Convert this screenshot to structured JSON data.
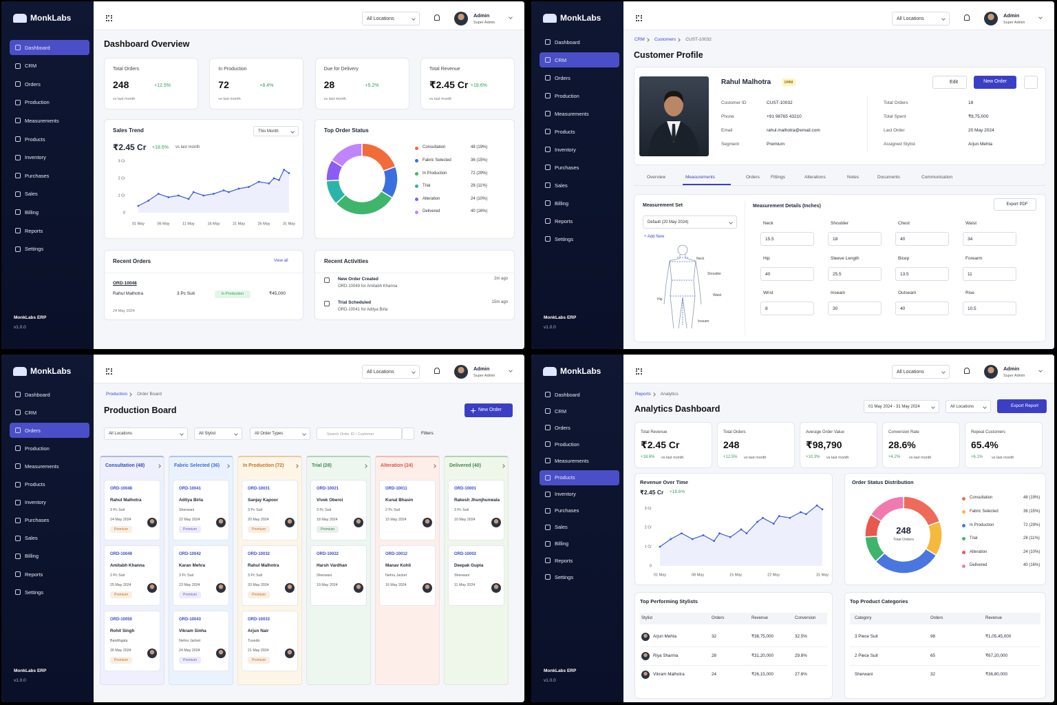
{
  "sidebar": {
    "brand": "MonkLabs",
    "nav": [
      "Dashboard",
      "CRM",
      "Orders",
      "Production",
      "Measurements",
      "Products",
      "Inventory",
      "Purchases",
      "Sales",
      "Billing",
      "Reports",
      "Settings"
    ],
    "footer": "MonkLabs ERP",
    "version": "v1.0.0"
  },
  "topbar": {
    "location": "All Locations",
    "user": "Admin",
    "role": "Super Admin"
  },
  "dashboard": {
    "active_nav": 0,
    "title": "Dashboard Overview",
    "stats": [
      {
        "label": "Total Orders",
        "value": "248",
        "change": "+12.5%",
        "note": "vs last month"
      },
      {
        "label": "In Production",
        "value": "72",
        "change": "+8.4%",
        "note": "vs last month"
      },
      {
        "label": "Due for Delivery",
        "value": "28",
        "change": "+5.2%",
        "note": "vs last month"
      },
      {
        "label": "Total Revenue",
        "value": "₹2.45 Cr",
        "change": "+18.6%",
        "note": "vs last month"
      }
    ],
    "sales_trend": {
      "title": "Sales Trend",
      "period": "This Month",
      "total": "₹2.45 Cr",
      "change": "+18.6%",
      "note": "vs last month",
      "chart": {
        "type": "line",
        "x": [
          1,
          3,
          5,
          7,
          9,
          11,
          12,
          14,
          16,
          18,
          19,
          21,
          23,
          25,
          27,
          28,
          29,
          30,
          31
        ],
        "values": [
          0.4,
          0.7,
          1.1,
          0.9,
          1.0,
          0.8,
          1.2,
          1.0,
          1.1,
          1.3,
          1.2,
          1.4,
          1.5,
          1.8,
          1.7,
          2.0,
          1.9,
          2.5,
          2.3
        ],
        "color": "#3b5bdb",
        "xlim": [
          1,
          31
        ],
        "xticks": [
          {
            "value": 1,
            "label": "01 May"
          },
          {
            "value": 6,
            "label": "06 May"
          },
          {
            "value": 11,
            "label": "11 May"
          },
          {
            "value": 16,
            "label": "16 May"
          },
          {
            "value": 21,
            "label": "21 May"
          },
          {
            "value": 26,
            "label": "26 May"
          },
          {
            "value": 31,
            "label": "31 May"
          }
        ],
        "ylim": [
          0,
          3
        ],
        "yticks": [
          0,
          {
            "value": 1,
            "label": "1 Cr"
          },
          {
            "value": 2,
            "label": "2 Cr"
          },
          {
            "value": 3,
            "label": "3 Cr"
          }
        ],
        "grid": false
      }
    },
    "order_status": {
      "title": "Top Order Status",
      "chart": {
        "type": "donut",
        "categories": [
          "Consultation",
          "Fabric Selected",
          "In Production",
          "Trial",
          "Alteration",
          "Delivered"
        ],
        "values": [
          48,
          36,
          72,
          28,
          24,
          40
        ],
        "value_labels": [
          "48 (19%)",
          "36 (15%)",
          "72 (29%)",
          "28 (11%)",
          "24 (10%)",
          "40 (16%)"
        ],
        "colors": [
          "#f26b3a",
          "#3b6fe0",
          "#3fb56b",
          "#2bb5a8",
          "#8b5cf6",
          "#c084fc"
        ]
      }
    },
    "recent_orders": {
      "title": "Recent Orders",
      "link": "View all",
      "rows": [
        {
          "id": "ORD-10048",
          "customer": "Rahul Malhotra",
          "product": "3 Pc Suit",
          "status": "In Production",
          "amount": "₹45,000",
          "date": "24 May 2024"
        }
      ]
    },
    "recent_activities": {
      "title": "Recent Activities",
      "items": [
        {
          "title": "New Order Created",
          "detail": "ORD-10049 for Amitabh Khanna",
          "time": "2m ago"
        },
        {
          "title": "Trial Scheduled",
          "detail": "ORD-10041 for Aditya Birla",
          "time": "15m ago"
        }
      ]
    }
  },
  "customer": {
    "active_nav": 1,
    "breadcrumb": [
      "CRM",
      "Customers",
      "CUST-10032"
    ],
    "title": "Customer Profile",
    "name": "Rahul Malhotra",
    "badge": "UHNI",
    "buttons": [
      "Edit",
      "New Order"
    ],
    "fields": [
      [
        "Customer ID",
        "CUST-10032"
      ],
      [
        "Phone",
        "+91 98765 43210"
      ],
      [
        "Email",
        "rahul.malhotra@email.com"
      ],
      [
        "Segment",
        "Premium"
      ]
    ],
    "summary": [
      [
        "Total Orders",
        "18"
      ],
      [
        "Total Spent",
        "₹8,75,000"
      ],
      [
        "Last Order",
        "20 May 2024"
      ],
      [
        "Assigned Stylist",
        "Arjun Mehta"
      ]
    ],
    "tabs": [
      "Overview",
      "Measurements",
      "Orders",
      "Fittings",
      "Alterations",
      "Notes",
      "Documents",
      "Communication"
    ],
    "active_tab": 1,
    "measurement_set": {
      "title": "Measurement Set",
      "selected": "Default (20 May 2024)",
      "add": "+ Add New",
      "figure_labels": [
        "Neck",
        "Shoulder",
        "Waist",
        "Hip",
        "Inseam"
      ]
    },
    "details": {
      "title": "Measurement Details (Inches)",
      "export": "Export PDF",
      "fields": [
        [
          "Neck",
          "15.5"
        ],
        [
          "Shoulder",
          "18"
        ],
        [
          "Chest",
          "40"
        ],
        [
          "Waist",
          "34"
        ],
        [
          "Hip",
          "40"
        ],
        [
          "Sleeve Length",
          "25.5"
        ],
        [
          "Bicep",
          "13.5"
        ],
        [
          "Forearm",
          "11"
        ],
        [
          "Wrist",
          "8"
        ],
        [
          "Inseam",
          "30"
        ],
        [
          "Outseam",
          "40"
        ],
        [
          "Rise",
          "10.5"
        ]
      ]
    }
  },
  "production": {
    "active_nav": 2,
    "breadcrumb": [
      "Production",
      "Order Board"
    ],
    "title": "Production Board",
    "button": "New Order",
    "filters": [
      "All Locations",
      "All Stylist",
      "All Order Types"
    ],
    "search": "Search Order ID / Customer",
    "filter_button": "Filters",
    "columns": [
      {
        "name": "Consultation (48)",
        "color": "#3646b8",
        "bg": "#eef1fd",
        "tag_color": "#c7711a",
        "cards": [
          {
            "id": "ORD-10048",
            "name": "Rahul Malhotra",
            "product": "3 Pc Suit",
            "date": "24 May 2024",
            "tag": "Premium"
          },
          {
            "id": "ORD-10049",
            "name": "Amitabh Khanna",
            "product": "2 Pc Suit",
            "date": "25 May 2024",
            "tag": "Premium"
          },
          {
            "id": "ORD-10050",
            "name": "Rohit Singh",
            "product": "Bandhgala",
            "date": "26 May 2024",
            "tag": "Premium"
          }
        ]
      },
      {
        "name": "Fabric Selected (36)",
        "color": "#3a6cd6",
        "bg": "#eaf2fd",
        "tag_color": "#6b5bd6",
        "cards": [
          {
            "id": "ORD-10041",
            "name": "Aditya Birla",
            "product": "Sherwani",
            "date": "22 May 2024",
            "tag": "Premium"
          },
          {
            "id": "ORD-10042",
            "name": "Karan Mehra",
            "product": "3 Pc Suit",
            "date": "23 May 2024",
            "tag": "Premium"
          },
          {
            "id": "ORD-10043",
            "name": "Vikram Sinha",
            "product": "Nehru Jacket",
            "date": "24 May 2024",
            "tag": "Premium"
          }
        ]
      },
      {
        "name": "In Production (72)",
        "color": "#c7711a",
        "bg": "#fdf5e6",
        "tag_color": "#c7711a",
        "cards": [
          {
            "id": "ORD-10031",
            "name": "Sanjay Kapoor",
            "product": "3 Pc Suit",
            "date": "20 May 2024",
            "tag": "Premium"
          },
          {
            "id": "ORD-10032",
            "name": "Rahul Malhotra",
            "product": "3 Pc Suit",
            "date": "20 May 2024",
            "tag": "Premium"
          },
          {
            "id": "ORD-10033",
            "name": "Arjun Nair",
            "product": "Tuxedo",
            "date": "21 May 2024",
            "tag": "Premium"
          }
        ]
      },
      {
        "name": "Trial (28)",
        "color": "#3b8a54",
        "bg": "#edf6ef",
        "tag_color": "#3b8a54",
        "cards": [
          {
            "id": "ORD-10021",
            "name": "Vivek Oberoi",
            "product": "3 Pc Suit",
            "date": "18 May 2024",
            "tag": "Premium"
          },
          {
            "id": "ORD-10022",
            "name": "Harsh Vardhan",
            "product": "Sherwani",
            "date": "19 May 2024"
          }
        ]
      },
      {
        "name": "Alteration (24)",
        "color": "#d8553f",
        "bg": "#fdeeea",
        "tag_color": "#d8553f",
        "cards": [
          {
            "id": "ORD-10011",
            "name": "Kunal Bhasin",
            "product": "2 Pc Suit",
            "date": "15 May 2024"
          },
          {
            "id": "ORD-10012",
            "name": "Manav Kohli",
            "product": "Nehru Jacket",
            "date": "16 May 2024"
          }
        ]
      },
      {
        "name": "Delivered (40)",
        "color": "#3c8a49",
        "bg": "#eef7ea",
        "tag_color": "#3c8a49",
        "cards": [
          {
            "id": "ORD-10001",
            "name": "Rakesh Jhunjhunwala",
            "product": "3 Pc Suit",
            "date": "10 May 2024"
          },
          {
            "id": "ORD-10002",
            "name": "Deepak Gupta",
            "product": "Sherwani",
            "date": "11 May 2024"
          }
        ]
      }
    ]
  },
  "analytics": {
    "active_nav": 5,
    "breadcrumb": [
      "Reports",
      "Analytics"
    ],
    "title": "Analytics Dashboard",
    "date_range": "01 May 2024 - 31 May 2024",
    "location": "All Locations",
    "export": "Export Report",
    "kpis": [
      {
        "label": "Total Revenue",
        "value": "₹2.45 Cr",
        "change": "+18.6%"
      },
      {
        "label": "Total Orders",
        "value": "248",
        "change": "+12.5%"
      },
      {
        "label": "Average Order Value",
        "value": "₹98,790",
        "change": "+10.3%"
      },
      {
        "label": "Conversion Rate",
        "value": "28.6%",
        "change": "+4.2%"
      },
      {
        "label": "Repeat Customers",
        "value": "65.4%",
        "change": "+6.1%"
      }
    ],
    "kpi_note": "vs last month",
    "revenue": {
      "title": "Revenue Over Time",
      "total": "₹2.45 Cr",
      "change": "+18.6%",
      "chart": {
        "type": "line",
        "x": [
          1,
          3,
          5,
          7,
          9,
          11,
          12,
          14,
          16,
          17,
          19,
          20,
          22,
          23,
          25,
          27,
          28,
          30,
          31
        ],
        "values": [
          1.0,
          1.4,
          1.7,
          1.4,
          1.6,
          1.3,
          1.7,
          1.5,
          1.9,
          1.7,
          2.3,
          2.5,
          2.2,
          2.6,
          2.5,
          2.8,
          2.7,
          3.15,
          2.95
        ],
        "color": "#3b5bdb",
        "xlim": [
          1,
          31
        ],
        "xticks": [
          {
            "value": 1,
            "label": "01 May"
          },
          {
            "value": 8,
            "label": "08 May"
          },
          {
            "value": 15,
            "label": "15 May"
          },
          {
            "value": 22,
            "label": "22 May"
          },
          {
            "value": 31,
            "label": "31 May"
          }
        ],
        "ylim": [
          0,
          3.3
        ],
        "yticks": [
          0,
          {
            "value": 1,
            "label": "1 Cr"
          },
          {
            "value": 2,
            "label": "2 Cr"
          },
          {
            "value": 3,
            "label": "3 Cr"
          }
        ],
        "grid": false
      }
    },
    "status": {
      "title": "Order Status Distribution",
      "center": "248",
      "center_label": "Total Orders",
      "chart": {
        "type": "donut",
        "categories": [
          "Consultation",
          "Fabric Selected",
          "In Production",
          "Trial",
          "Alteration",
          "Delivered"
        ],
        "values": [
          48,
          36,
          72,
          28,
          24,
          40
        ],
        "value_labels": [
          "48 (19%)",
          "36 (15%)",
          "72 (29%)",
          "28 (11%)",
          "24 (10%)",
          "40 (16%)"
        ],
        "colors": [
          "#ef6a5a",
          "#f6b93b",
          "#4a76e0",
          "#3fb56b",
          "#e9584e",
          "#f07ab0"
        ]
      }
    },
    "stylists": {
      "title": "Top Performing Stylists",
      "columns": [
        "Stylist",
        "Orders",
        "Revenue",
        "Conversion"
      ],
      "rows": [
        [
          "Arjun Mehta",
          "32",
          "₹38,75,000",
          "32.5%"
        ],
        [
          "Riya Sharma",
          "28",
          "₹31,20,000",
          "29.8%"
        ],
        [
          "Vikram Malhotra",
          "24",
          "₹26,15,000",
          "27.6%"
        ]
      ]
    },
    "categories": {
      "title": "Top Product Categories",
      "columns": [
        "Category",
        "Orders",
        "Revenue"
      ],
      "rows": [
        [
          "3 Piece Suit",
          "98",
          "₹1,05,45,000"
        ],
        [
          "2 Piece Suit",
          "65",
          "₹67,20,000"
        ],
        [
          "Sherwani",
          "32",
          "₹36,80,000"
        ]
      ]
    }
  }
}
